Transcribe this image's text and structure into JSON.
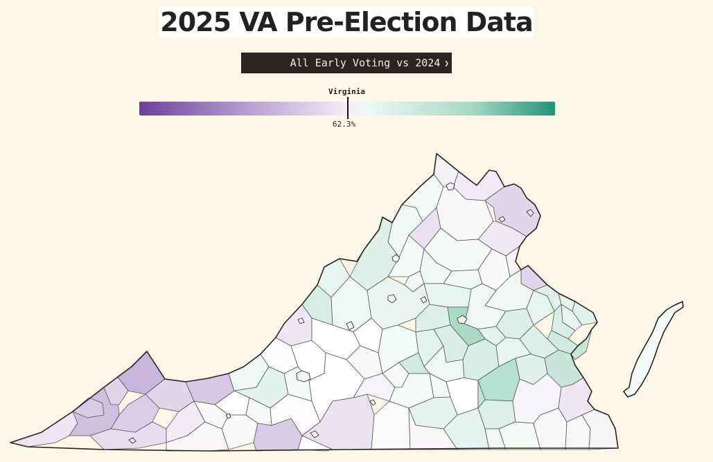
{
  "page": {
    "title": "2025 VA Pre-Election Data"
  },
  "metric_select": {
    "selected": "All Early Voting vs 2024"
  },
  "legend": {
    "marker_label": "Virginia",
    "marker_value": "62.3%",
    "colors": {
      "low": "#6f3f9c",
      "mid": "#f5f2f7",
      "high": "#1f9478"
    }
  },
  "map": {
    "region": "Virginia",
    "counties": [
      {
        "id": "lee",
        "fill": "#ece6f3"
      },
      {
        "id": "scott",
        "fill": "#cfc0e0"
      },
      {
        "id": "wise",
        "fill": "#d8cbe6"
      },
      {
        "id": "dickenson",
        "fill": "#dfd4ea"
      },
      {
        "id": "buchanan",
        "fill": "#c8b5dc"
      },
      {
        "id": "russell",
        "fill": "#d9cde7"
      },
      {
        "id": "washington",
        "fill": "#e6ddef"
      },
      {
        "id": "tazewell",
        "fill": "#e0d6ea"
      },
      {
        "id": "smyth",
        "fill": "#f1ecf6"
      },
      {
        "id": "bland",
        "fill": "#d6c8e4"
      },
      {
        "id": "grayson",
        "fill": "#f8f6f9"
      },
      {
        "id": "wythe",
        "fill": "#fbfafb"
      },
      {
        "id": "pulaski",
        "fill": "#ffffff"
      },
      {
        "id": "giles",
        "fill": "#eef7f3"
      },
      {
        "id": "montgomery",
        "fill": "#e3f2ec"
      },
      {
        "id": "carroll",
        "fill": "#fafafa"
      },
      {
        "id": "floyd",
        "fill": "#f7fbf9"
      },
      {
        "id": "patrick",
        "fill": "#d8cde6"
      },
      {
        "id": "franklin",
        "fill": "#fdfdfd"
      },
      {
        "id": "roanoke",
        "fill": "#f4fbf8"
      },
      {
        "id": "craig",
        "fill": "#fefefe"
      },
      {
        "id": "botetourt",
        "fill": "#ffffff"
      },
      {
        "id": "alleghany",
        "fill": "#eee7f4"
      },
      {
        "id": "bath",
        "fill": "#d6ede4"
      },
      {
        "id": "highland",
        "fill": "#e8f4ef"
      },
      {
        "id": "augusta",
        "fill": "#eef7f3"
      },
      {
        "id": "rockbridge",
        "fill": "#ffffff"
      },
      {
        "id": "amherst",
        "fill": "#fafafa"
      },
      {
        "id": "bedford",
        "fill": "#ffffff"
      },
      {
        "id": "pittsylvania",
        "fill": "#e9e3f0"
      },
      {
        "id": "henry",
        "fill": "#ffffff"
      },
      {
        "id": "campbell",
        "fill": "#f6f4f8"
      },
      {
        "id": "halifax",
        "fill": "#fbfbfb"
      },
      {
        "id": "rockingham",
        "fill": "#dff0e9"
      },
      {
        "id": "shenandoah",
        "fill": "#eef7f3"
      },
      {
        "id": "frederick",
        "fill": "#f3faf7"
      },
      {
        "id": "clarke",
        "fill": "#f5f2f7"
      },
      {
        "id": "warren",
        "fill": "#eae1f0"
      },
      {
        "id": "page",
        "fill": "#f3faf7"
      },
      {
        "id": "loudoun",
        "fill": "#f0ebf5"
      },
      {
        "id": "fauquier",
        "fill": "#f8f8f8"
      },
      {
        "id": "fairfax",
        "fill": "#e1d7ec"
      },
      {
        "id": "prince-william",
        "fill": "#efe9f4"
      },
      {
        "id": "culpeper",
        "fill": "#f6fbf8"
      },
      {
        "id": "madison",
        "fill": "#eff7f3"
      },
      {
        "id": "greene",
        "fill": "#eff7f3"
      },
      {
        "id": "albemarle",
        "fill": "#eaf5f0"
      },
      {
        "id": "nelson",
        "fill": "#ffffff"
      },
      {
        "id": "buckingham",
        "fill": "#f2faf6"
      },
      {
        "id": "appomattox",
        "fill": "#f8f8f8"
      },
      {
        "id": "charlotte",
        "fill": "#f4fbf8"
      },
      {
        "id": "prince-edward",
        "fill": "#d1ebe0"
      },
      {
        "id": "cumberland",
        "fill": "#e5f3ee"
      },
      {
        "id": "fluvanna",
        "fill": "#ddf0e8"
      },
      {
        "id": "louisa",
        "fill": "#e9f5f0"
      },
      {
        "id": "orange",
        "fill": "#f0f8f4"
      },
      {
        "id": "spotsylvania",
        "fill": "#fafafa"
      },
      {
        "id": "stafford",
        "fill": "#f6f4f8"
      },
      {
        "id": "king-george",
        "fill": "#e0d5ea"
      },
      {
        "id": "caroline",
        "fill": "#f0f8f4"
      },
      {
        "id": "hanover",
        "fill": "#eef7f3"
      },
      {
        "id": "goochland",
        "fill": "#a9dac6"
      },
      {
        "id": "powhatan",
        "fill": "#d9eee5"
      },
      {
        "id": "amelia",
        "fill": "#eef7f3"
      },
      {
        "id": "nottoway",
        "fill": "#f4fbf8"
      },
      {
        "id": "lunenburg",
        "fill": "#e6f3ee"
      },
      {
        "id": "mecklenburg",
        "fill": "#f8f6f9"
      },
      {
        "id": "brunswick",
        "fill": "#e6f3ee"
      },
      {
        "id": "dinwiddie",
        "fill": "#ffffff"
      },
      {
        "id": "chesterfield",
        "fill": "#d7eee4"
      },
      {
        "id": "henrico",
        "fill": "#e5f3ee"
      },
      {
        "id": "new-kent",
        "fill": "#dcefe7"
      },
      {
        "id": "king-william",
        "fill": "#e8f4ef"
      },
      {
        "id": "essex",
        "fill": "#e1f1ea"
      },
      {
        "id": "westmoreland",
        "fill": "#e6f3ee"
      },
      {
        "id": "northumberland",
        "fill": "#e3f2ec"
      },
      {
        "id": "lancaster",
        "fill": "#e8f4ef"
      },
      {
        "id": "middlesex",
        "fill": "#d9eee5"
      },
      {
        "id": "gloucester",
        "fill": "#d1ebe0"
      },
      {
        "id": "mathews",
        "fill": "#c8e6d9"
      },
      {
        "id": "james-city",
        "fill": "#dff0e9"
      },
      {
        "id": "charles-city",
        "fill": "#e9f5f0"
      },
      {
        "id": "prince-george",
        "fill": "#b6e0cf"
      },
      {
        "id": "sussex",
        "fill": "#ddf0e8"
      },
      {
        "id": "surry",
        "fill": "#e1f1ea"
      },
      {
        "id": "greensville",
        "fill": "#eff7f3"
      },
      {
        "id": "southampton",
        "fill": "#f6fbf8"
      },
      {
        "id": "isle-of-wight",
        "fill": "#f6f4f8"
      },
      {
        "id": "suffolk",
        "fill": "#f8f6f9"
      },
      {
        "id": "chesapeake",
        "fill": "#f8f6f9"
      },
      {
        "id": "virginia-beach",
        "fill": "#f7f4f8"
      },
      {
        "id": "southside-central",
        "fill": "#c3e5d7"
      },
      {
        "id": "halifax-east",
        "fill": "#c7e5d9"
      },
      {
        "id": "york",
        "fill": "#eee7f4"
      },
      {
        "id": "accomack",
        "fill": "#f4fbf8"
      }
    ]
  }
}
